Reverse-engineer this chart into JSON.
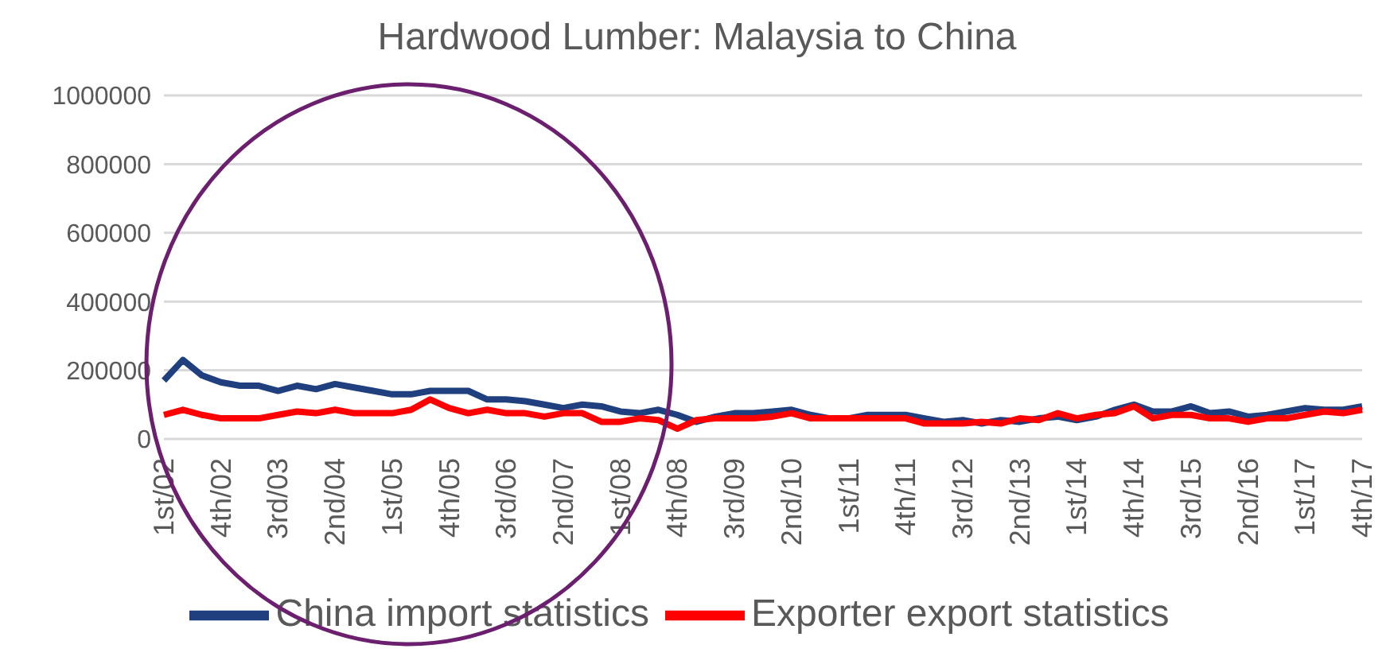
{
  "chart_data": {
    "type": "line",
    "title": "Hardwood Lumber: Malaysia to China",
    "categories": [
      "1st/02",
      null,
      null,
      "4th/02",
      null,
      null,
      "3rd/03",
      null,
      null,
      "2nd/04",
      null,
      null,
      "1st/05",
      null,
      null,
      "4th/05",
      null,
      null,
      "3rd/06",
      null,
      null,
      "2nd/07",
      null,
      null,
      "1st/08",
      null,
      null,
      "4th/08",
      null,
      null,
      "3rd/09",
      null,
      null,
      "2nd/10",
      null,
      null,
      "1st/11",
      null,
      null,
      "4th/11",
      null,
      null,
      "3rd/12",
      null,
      null,
      "2nd/13",
      null,
      null,
      "1st/14",
      null,
      null,
      "4th/14",
      null,
      null,
      "3rd/15",
      null,
      null,
      "2nd/16",
      null,
      null,
      "1st/17",
      null,
      null,
      "4th/17"
    ],
    "series": [
      {
        "name": "China import statistics",
        "color": "#1f3f7f",
        "values": [
          170000,
          230000,
          185000,
          165000,
          155000,
          155000,
          140000,
          155000,
          145000,
          160000,
          150000,
          140000,
          130000,
          130000,
          140000,
          140000,
          140000,
          115000,
          115000,
          110000,
          100000,
          90000,
          100000,
          95000,
          80000,
          75000,
          85000,
          70000,
          50000,
          65000,
          75000,
          75000,
          80000,
          85000,
          70000,
          60000,
          60000,
          70000,
          70000,
          70000,
          60000,
          50000,
          55000,
          45000,
          55000,
          50000,
          60000,
          65000,
          55000,
          65000,
          85000,
          100000,
          80000,
          80000,
          95000,
          75000,
          80000,
          65000,
          70000,
          80000,
          90000,
          85000,
          85000,
          95000
        ]
      },
      {
        "name": "Exporter export statistics",
        "color": "#ff0000",
        "values": [
          70000,
          85000,
          70000,
          60000,
          60000,
          60000,
          70000,
          80000,
          75000,
          85000,
          75000,
          75000,
          75000,
          85000,
          115000,
          90000,
          75000,
          85000,
          75000,
          75000,
          65000,
          75000,
          75000,
          50000,
          50000,
          60000,
          55000,
          30000,
          55000,
          60000,
          60000,
          60000,
          65000,
          75000,
          60000,
          60000,
          60000,
          60000,
          60000,
          60000,
          45000,
          45000,
          45000,
          50000,
          45000,
          60000,
          55000,
          75000,
          60000,
          70000,
          75000,
          95000,
          60000,
          70000,
          70000,
          60000,
          60000,
          50000,
          60000,
          60000,
          70000,
          80000,
          75000,
          85000
        ]
      }
    ],
    "ylim": [
      0,
      1000000
    ],
    "yticks": [
      0,
      200000,
      400000,
      600000,
      800000,
      1000000
    ],
    "grid": "y",
    "legend": "bottom",
    "marker": "none",
    "line_style": "solid"
  }
}
